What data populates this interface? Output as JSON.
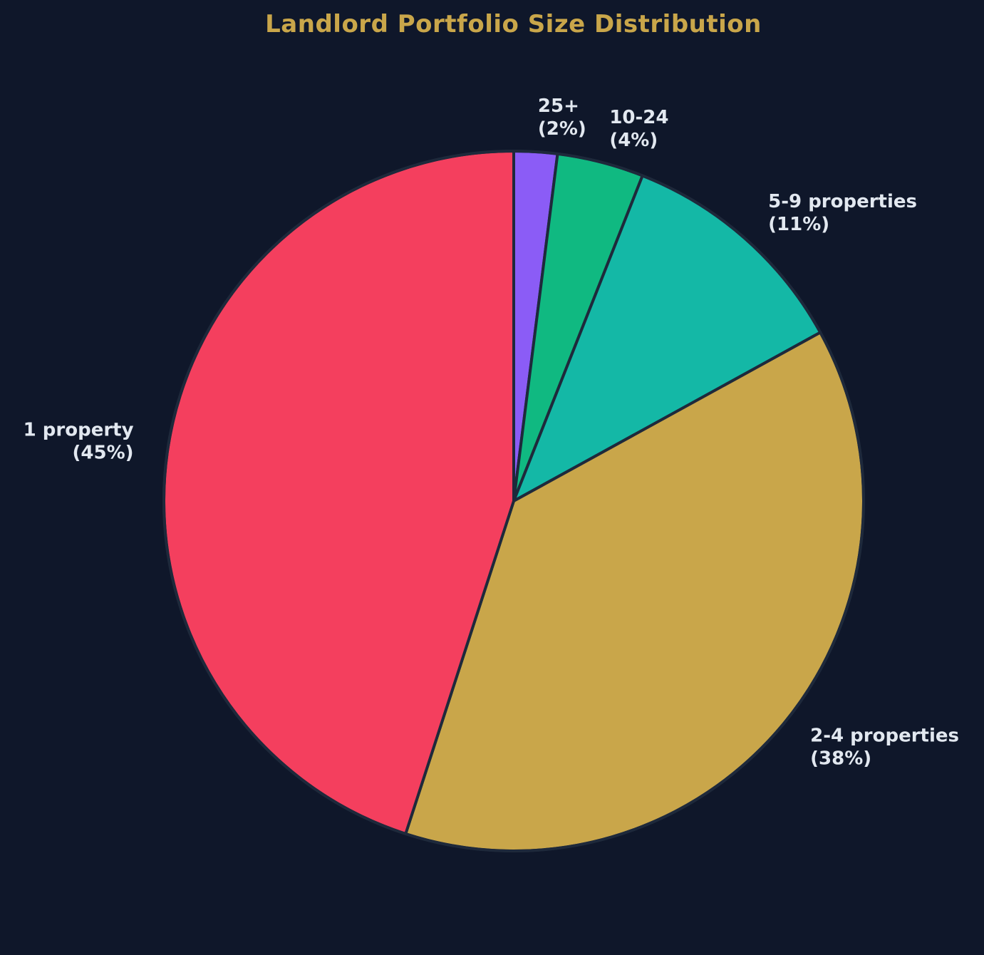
{
  "chart_data": {
    "type": "pie",
    "title": "Landlord Portfolio Size Distribution",
    "start_angle_deg": 90,
    "direction": "clockwise",
    "slice_edge_color": "#1e293b",
    "background_color": "#0f172a",
    "title_color": "#c9a64a",
    "label_color": "#e2e8f0",
    "slices": [
      {
        "label": "25+",
        "value": 2,
        "pct_label": "(2%)",
        "color": "#8b5cf6"
      },
      {
        "label": "10-24",
        "value": 4,
        "pct_label": "(4%)",
        "color": "#10b981"
      },
      {
        "label": "5-9 properties",
        "value": 11,
        "pct_label": "(11%)",
        "color": "#14b8a6"
      },
      {
        "label": "2-4 properties",
        "value": 38,
        "pct_label": "(38%)",
        "color": "#c9a64a"
      },
      {
        "label": "1 property",
        "value": 45,
        "pct_label": "(45%)",
        "color": "#f43f5e"
      }
    ]
  }
}
